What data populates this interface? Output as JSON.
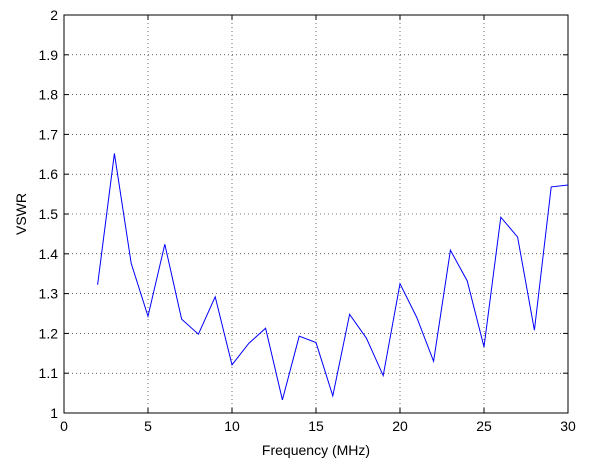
{
  "chart_data": {
    "type": "line",
    "title": "",
    "xlabel": "Frequency (MHz)",
    "ylabel": "VSWR",
    "xlim": [
      0,
      30
    ],
    "ylim": [
      1,
      2
    ],
    "xticks": [
      0,
      5,
      10,
      15,
      20,
      25,
      30
    ],
    "yticks": [
      1,
      1.1,
      1.2,
      1.3,
      1.4,
      1.5,
      1.6,
      1.7,
      1.8,
      1.9,
      2
    ],
    "xtick_labels": [
      "0",
      "5",
      "10",
      "15",
      "20",
      "25",
      "30"
    ],
    "ytick_labels": [
      "1",
      "1.1",
      "1.2",
      "1.3",
      "1.4",
      "1.5",
      "1.6",
      "1.7",
      "1.8",
      "1.9",
      "2"
    ],
    "grid": true,
    "grid_style": "dotted",
    "line_color": "#0000ff",
    "series": [
      {
        "x": [
          2,
          3,
          4,
          5,
          6,
          7,
          8,
          9,
          10,
          11,
          12,
          13,
          14,
          15,
          16,
          17,
          18,
          19,
          20,
          21,
          22,
          23,
          24,
          25,
          26,
          27,
          28,
          29,
          30
        ],
        "y": [
          1.322,
          1.652,
          1.376,
          1.243,
          1.424,
          1.236,
          1.198,
          1.292,
          1.121,
          1.175,
          1.213,
          1.033,
          1.193,
          1.177,
          1.043,
          1.248,
          1.188,
          1.094,
          1.325,
          1.24,
          1.13,
          1.409,
          1.332,
          1.166,
          1.492,
          1.442,
          1.208,
          1.568,
          1.573
        ]
      }
    ]
  }
}
